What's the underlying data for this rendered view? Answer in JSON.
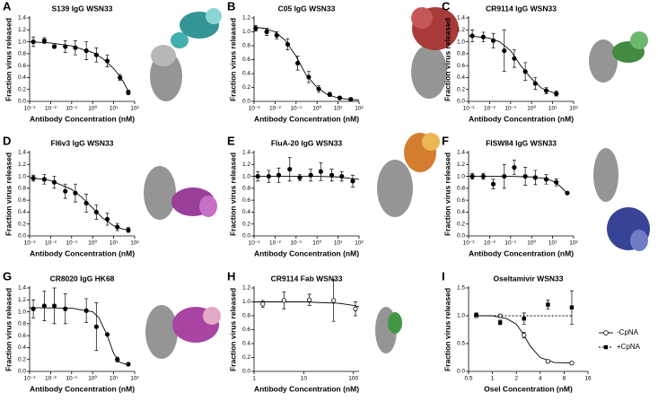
{
  "chart_data": [
    {
      "type": "dose-response",
      "label": "A",
      "title": "S139 IgG WSN33",
      "x_label": "Antibody Concentration (nM)",
      "y_label": "Fraction virus released",
      "xscale": "log",
      "xlim": [
        0.001,
        100
      ],
      "xticks": [
        {
          "value": 0.001,
          "label": "10⁻³"
        },
        {
          "value": 0.01,
          "label": "10⁻²"
        },
        {
          "value": 0.1,
          "label": "10⁻¹"
        },
        {
          "value": 1,
          "label": "10⁰"
        },
        {
          "value": 10,
          "label": "10¹"
        },
        {
          "value": 100,
          "label": "10²"
        }
      ],
      "ylim": [
        0,
        1.4
      ],
      "yticks": [
        {
          "value": 0,
          "label": "0.0"
        },
        0.2,
        0.4,
        0.6,
        0.8,
        {
          "value": 1,
          "label": "1.0"
        },
        1.2,
        1.4
      ],
      "series": [
        {
          "marker": "circle",
          "color": "#000000",
          "x": [
            0.0015,
            0.005,
            0.015,
            0.05,
            0.15,
            0.5,
            1.5,
            5,
            20,
            50
          ],
          "values": [
            1.0,
            1.02,
            0.92,
            0.92,
            0.9,
            0.85,
            0.78,
            0.68,
            0.4,
            0.15
          ],
          "errors": [
            0.08,
            0.05,
            0.03,
            0.1,
            0.12,
            0.15,
            0.12,
            0.1,
            0.05,
            0.04
          ],
          "fit": {
            "x": [
              0.001,
              0.01,
              0.1,
              1,
              3,
              10,
              20,
              30,
              50
            ],
            "values": [
              1.0,
              0.98,
              0.93,
              0.82,
              0.72,
              0.55,
              0.42,
              0.32,
              0.17
            ]
          }
        }
      ]
    },
    {
      "type": "dose-response",
      "label": "B",
      "title": "C05 IgG WSN33",
      "x_label": "Antibody Concentration (nM)",
      "y_label": "Fraction virus released",
      "xscale": "log",
      "xlim": [
        0.001,
        100
      ],
      "xticks": [
        {
          "value": 0.001,
          "label": "10⁻³"
        },
        {
          "value": 0.01,
          "label": "10⁻²"
        },
        {
          "value": 0.1,
          "label": "10⁻¹"
        },
        {
          "value": 1,
          "label": "10⁰"
        },
        {
          "value": 10,
          "label": "10¹"
        },
        {
          "value": 100,
          "label": "10²"
        }
      ],
      "ylim": [
        0,
        1.2
      ],
      "yticks": [
        {
          "value": 0,
          "label": "0.0"
        },
        0.2,
        0.4,
        0.6,
        0.8,
        {
          "value": 1,
          "label": "1.0"
        },
        1.2
      ],
      "series": [
        {
          "marker": "circle",
          "color": "#000000",
          "x": [
            0.0012,
            0.004,
            0.012,
            0.04,
            0.12,
            0.4,
            1.2,
            4,
            12,
            40
          ],
          "values": [
            1.05,
            1.0,
            0.95,
            0.82,
            0.55,
            0.35,
            0.18,
            0.1,
            0.05,
            0.03
          ],
          "errors": [
            0.04,
            0.05,
            0.05,
            0.08,
            0.1,
            0.08,
            0.05,
            0.03,
            0.02,
            0.02
          ],
          "fit": {
            "x": [
              0.001,
              0.003,
              0.01,
              0.03,
              0.1,
              0.3,
              1,
              3,
              10,
              30,
              100
            ],
            "values": [
              1.07,
              1.05,
              1.0,
              0.88,
              0.65,
              0.38,
              0.2,
              0.1,
              0.05,
              0.03,
              0.02
            ]
          }
        }
      ]
    },
    {
      "type": "dose-response",
      "label": "C",
      "title": "CR9114 IgG WSN33",
      "x_label": "Antibody Concentration (nM)",
      "y_label": "Fraction virus released",
      "xscale": "log",
      "xlim": [
        0.001,
        100
      ],
      "xticks": [
        {
          "value": 0.001,
          "label": "10⁻³"
        },
        {
          "value": 0.01,
          "label": "10⁻²"
        },
        {
          "value": 0.1,
          "label": "10⁻¹"
        },
        {
          "value": 1,
          "label": "10⁰"
        },
        {
          "value": 10,
          "label": "10¹"
        },
        {
          "value": 100,
          "label": "10²"
        }
      ],
      "ylim": [
        0,
        1.4
      ],
      "yticks": [
        {
          "value": 0,
          "label": "0.0"
        },
        0.2,
        0.4,
        0.6,
        0.8,
        {
          "value": 1,
          "label": "1.0"
        },
        1.2,
        1.4
      ],
      "series": [
        {
          "marker": "circle",
          "color": "#000000",
          "x": [
            0.0015,
            0.005,
            0.015,
            0.05,
            0.15,
            0.5,
            1.5,
            5,
            15
          ],
          "values": [
            1.1,
            1.08,
            1.02,
            0.85,
            0.72,
            0.5,
            0.3,
            0.18,
            0.13
          ],
          "errors": [
            0.1,
            0.08,
            0.12,
            0.35,
            0.15,
            0.15,
            0.1,
            0.05,
            0.04
          ],
          "fit": {
            "x": [
              0.001,
              0.01,
              0.03,
              0.1,
              0.3,
              1,
              3,
              10,
              20
            ],
            "values": [
              1.1,
              1.06,
              1.0,
              0.85,
              0.6,
              0.38,
              0.22,
              0.15,
              0.13
            ]
          }
        }
      ]
    },
    {
      "type": "dose-response",
      "label": "D",
      "title": "FI6v3 IgG WSN33",
      "x_label": "Antibody Concentration (nM)",
      "y_label": "Fraction virus released",
      "xscale": "log",
      "xlim": [
        0.001,
        100
      ],
      "xticks": [
        {
          "value": 0.001,
          "label": "10⁻³"
        },
        {
          "value": 0.01,
          "label": "10⁻²"
        },
        {
          "value": 0.1,
          "label": "10⁻¹"
        },
        {
          "value": 1,
          "label": "10⁰"
        },
        {
          "value": 10,
          "label": "10¹"
        },
        {
          "value": 100,
          "label": "10²"
        }
      ],
      "ylim": [
        0,
        1.4
      ],
      "yticks": [
        {
          "value": 0,
          "label": "0.0"
        },
        0.2,
        0.4,
        0.6,
        0.8,
        {
          "value": 1,
          "label": "1.0"
        },
        1.2,
        1.4
      ],
      "series": [
        {
          "marker": "circle",
          "color": "#000000",
          "x": [
            0.0015,
            0.005,
            0.015,
            0.05,
            0.15,
            0.5,
            1.5,
            5,
            15,
            50
          ],
          "values": [
            0.97,
            0.95,
            0.9,
            0.75,
            0.72,
            0.55,
            0.4,
            0.28,
            0.15,
            0.1
          ],
          "errors": [
            0.05,
            0.08,
            0.1,
            0.12,
            0.15,
            0.15,
            0.12,
            0.1,
            0.06,
            0.04
          ],
          "fit": {
            "x": [
              0.001,
              0.01,
              0.1,
              0.3,
              1,
              3,
              10,
              30,
              60
            ],
            "values": [
              0.98,
              0.93,
              0.78,
              0.65,
              0.47,
              0.3,
              0.17,
              0.11,
              0.1
            ]
          }
        }
      ]
    },
    {
      "type": "dose-response",
      "label": "E",
      "title": "FluA-20 IgG WSN33",
      "x_label": "Antibody Concentration (nM)",
      "y_label": "Fraction virus released",
      "xscale": "log",
      "xlim": [
        0.001,
        100
      ],
      "xticks": [
        {
          "value": 0.001,
          "label": "10⁻³"
        },
        {
          "value": 0.01,
          "label": "10⁻²"
        },
        {
          "value": 0.1,
          "label": "10⁻¹"
        },
        {
          "value": 1,
          "label": "10⁰"
        },
        {
          "value": 10,
          "label": "10¹"
        },
        {
          "value": 100,
          "label": "10²"
        }
      ],
      "ylim": [
        0,
        1.4
      ],
      "yticks": [
        {
          "value": 0,
          "label": "0.0"
        },
        0.2,
        0.4,
        0.6,
        0.8,
        {
          "value": 1,
          "label": "1.0"
        },
        1.2,
        1.4
      ],
      "series": [
        {
          "marker": "circle",
          "color": "#000000",
          "x": [
            0.0015,
            0.005,
            0.015,
            0.05,
            0.15,
            0.5,
            1.5,
            5,
            15,
            50
          ],
          "values": [
            1.0,
            1.0,
            1.02,
            1.12,
            0.98,
            1.02,
            1.08,
            1.02,
            1.0,
            0.92
          ],
          "errors": [
            0.08,
            0.1,
            0.12,
            0.2,
            0.05,
            0.1,
            0.15,
            0.1,
            0.08,
            0.1
          ],
          "fit": {
            "x": [
              0.001,
              1,
              10,
              50,
              100
            ],
            "values": [
              1.0,
              1.0,
              0.99,
              0.96,
              0.95
            ]
          }
        }
      ]
    },
    {
      "type": "dose-response",
      "label": "F",
      "title": "FISW84 IgG WSN33",
      "x_label": "Antibody Concentration (nM)",
      "y_label": "Fraction virus released",
      "xscale": "log",
      "xlim": [
        0.001,
        100
      ],
      "xticks": [
        {
          "value": 0.001,
          "label": "10⁻³"
        },
        {
          "value": 0.01,
          "label": "10⁻²"
        },
        {
          "value": 0.1,
          "label": "10⁻¹"
        },
        {
          "value": 1,
          "label": "10⁰"
        },
        {
          "value": 10,
          "label": "10¹"
        },
        {
          "value": 100,
          "label": "10²"
        }
      ],
      "ylim": [
        0,
        1.4
      ],
      "yticks": [
        {
          "value": 0,
          "label": "0.0"
        },
        0.2,
        0.4,
        0.6,
        0.8,
        {
          "value": 1,
          "label": "1.0"
        },
        1.2,
        1.4
      ],
      "series": [
        {
          "marker": "circle",
          "color": "#000000",
          "x": [
            0.0015,
            0.005,
            0.015,
            0.05,
            0.15,
            0.5,
            1.5,
            5,
            15,
            50
          ],
          "values": [
            1.0,
            1.0,
            0.87,
            1.0,
            1.15,
            1.0,
            0.98,
            0.95,
            0.9,
            0.72
          ],
          "errors": [
            0.05,
            0.05,
            0.08,
            0.2,
            0.12,
            0.15,
            0.12,
            0.08,
            0.06,
            0.02
          ],
          "fit": {
            "x": [
              0.001,
              0.1,
              1,
              5,
              10,
              20,
              50
            ],
            "values": [
              1.0,
              1.0,
              0.99,
              0.96,
              0.92,
              0.85,
              0.72
            ]
          }
        }
      ]
    },
    {
      "type": "dose-response",
      "label": "G",
      "title": "CR8020 IgG HK68",
      "x_label": "Antibody Concentration (nM)",
      "y_label": "Fraction virus released",
      "xscale": "log",
      "xlim": [
        0.001,
        100
      ],
      "xticks": [
        {
          "value": 0.001,
          "label": "10⁻³"
        },
        {
          "value": 0.01,
          "label": "10⁻²"
        },
        {
          "value": 0.1,
          "label": "10⁻¹"
        },
        {
          "value": 1,
          "label": "10⁰"
        },
        {
          "value": 10,
          "label": "10¹"
        },
        {
          "value": 100,
          "label": "10²"
        }
      ],
      "ylim": [
        0,
        1.4
      ],
      "yticks": [
        {
          "value": 0,
          "label": "0.0"
        },
        0.2,
        0.4,
        0.6,
        0.8,
        {
          "value": 1,
          "label": "1.0"
        },
        1.2,
        1.4
      ],
      "series": [
        {
          "marker": "circle",
          "color": "#000000",
          "x": [
            0.0015,
            0.005,
            0.015,
            0.05,
            0.5,
            1.5,
            5,
            15,
            50
          ],
          "values": [
            1.05,
            1.1,
            1.1,
            1.05,
            1.02,
            0.75,
            0.62,
            0.2,
            0.12
          ],
          "errors": [
            0.15,
            0.25,
            0.3,
            0.25,
            0.2,
            0.4,
            0.02,
            0.04,
            0.02
          ],
          "fit": {
            "x": [
              0.001,
              0.1,
              1,
              2,
              5,
              10,
              20,
              50
            ],
            "values": [
              1.07,
              1.06,
              1.0,
              0.9,
              0.6,
              0.3,
              0.15,
              0.11
            ]
          }
        }
      ]
    },
    {
      "type": "dose-response",
      "label": "H",
      "title": "CR9114 Fab WSN33",
      "x_label": "Antibody Concentration (nM)",
      "y_label": "Fraction virus released",
      "xscale": "log",
      "xlim": [
        1,
        130
      ],
      "xticks": [
        1,
        10,
        100
      ],
      "ylim": [
        0,
        1.2
      ],
      "yticks": [
        {
          "value": 0,
          "label": "0.0"
        },
        0.2,
        0.4,
        0.6,
        0.8,
        {
          "value": 1,
          "label": "1.0"
        },
        1.2
      ],
      "series": [
        {
          "marker": "open-circle",
          "color": "#000000",
          "x": [
            1.5,
            4,
            13,
            40,
            110
          ],
          "values": [
            0.97,
            1.02,
            1.03,
            1.02,
            0.9
          ],
          "errors": [
            0.05,
            0.12,
            0.08,
            0.3,
            0.1
          ],
          "fit": {
            "x": [
              1,
              10,
              50,
              100,
              130
            ],
            "values": [
              1.0,
              1.0,
              0.98,
              0.95,
              0.93
            ]
          }
        }
      ]
    },
    {
      "type": "dose-response",
      "label": "I",
      "title": "Oseltamivir WSN33",
      "x_label": "Osel Concentration (nM)",
      "y_label": "Fraction virus released",
      "xscale": "log",
      "xlim": [
        0.5,
        16
      ],
      "xticks": [
        0.5,
        1,
        2,
        4,
        8,
        16
      ],
      "ylim": [
        0,
        1.5
      ],
      "yticks": [
        {
          "value": 0,
          "label": "0.0"
        },
        0.5,
        {
          "value": 1,
          "label": "1.0"
        },
        1.5
      ],
      "legend": "right",
      "series": [
        {
          "name": "-CpNA",
          "marker": "open-circle",
          "color": "#000000",
          "x": [
            0.625,
            1.25,
            2.5,
            5,
            10
          ],
          "values": [
            1.0,
            1.0,
            0.65,
            0.18,
            0.15
          ],
          "errors": [
            0.03,
            0.02,
            0.05,
            0.03,
            0.03
          ],
          "fit": {
            "x": [
              0.625,
              1,
              1.5,
              2,
              2.5,
              3,
              4,
              6,
              10
            ],
            "values": [
              1.0,
              1.0,
              0.95,
              0.85,
              0.65,
              0.45,
              0.25,
              0.16,
              0.15
            ]
          }
        },
        {
          "name": "+CpNA",
          "marker": "square",
          "color": "#000000",
          "dash": true,
          "x": [
            0.625,
            1.25,
            2.5,
            5,
            10
          ],
          "values": [
            1.02,
            0.88,
            0.95,
            1.2,
            1.15
          ],
          "errors": [
            0.03,
            0.04,
            0.1,
            0.08,
            0.3
          ],
          "fit": {
            "x": [
              0.625,
              10
            ],
            "values": [
              1.0,
              1.0
            ]
          }
        }
      ]
    }
  ]
}
